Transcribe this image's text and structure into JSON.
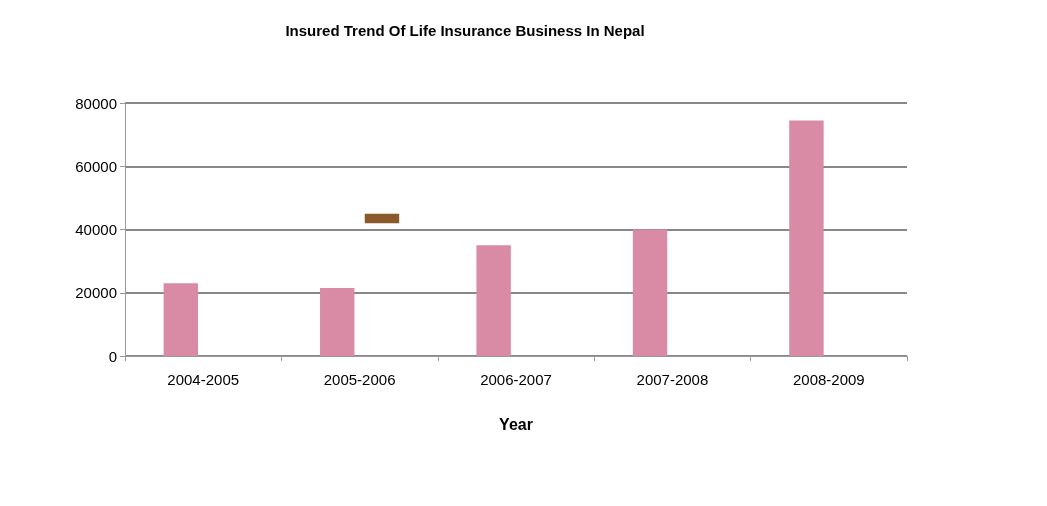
{
  "chart_data": {
    "type": "bar",
    "title": "Insured Trend Of Life Insurance Business In Nepal",
    "xlabel": "Year",
    "categories": [
      "2004-2005",
      "2005-2006",
      "2006-2007",
      "2007-2008",
      "2008-2009"
    ],
    "series": [
      {
        "color": "#d98aa5",
        "values": [
          23000,
          21500,
          35000,
          40000,
          74500
        ]
      },
      {
        "color": "#8b5a2b",
        "values": [
          null,
          3000,
          null,
          null,
          null
        ],
        "base": [
          null,
          42000,
          null,
          null,
          null
        ]
      }
    ],
    "ylim": [
      0,
      80000
    ],
    "yticks": [
      0,
      20000,
      40000,
      60000,
      80000
    ],
    "grid": "y"
  }
}
